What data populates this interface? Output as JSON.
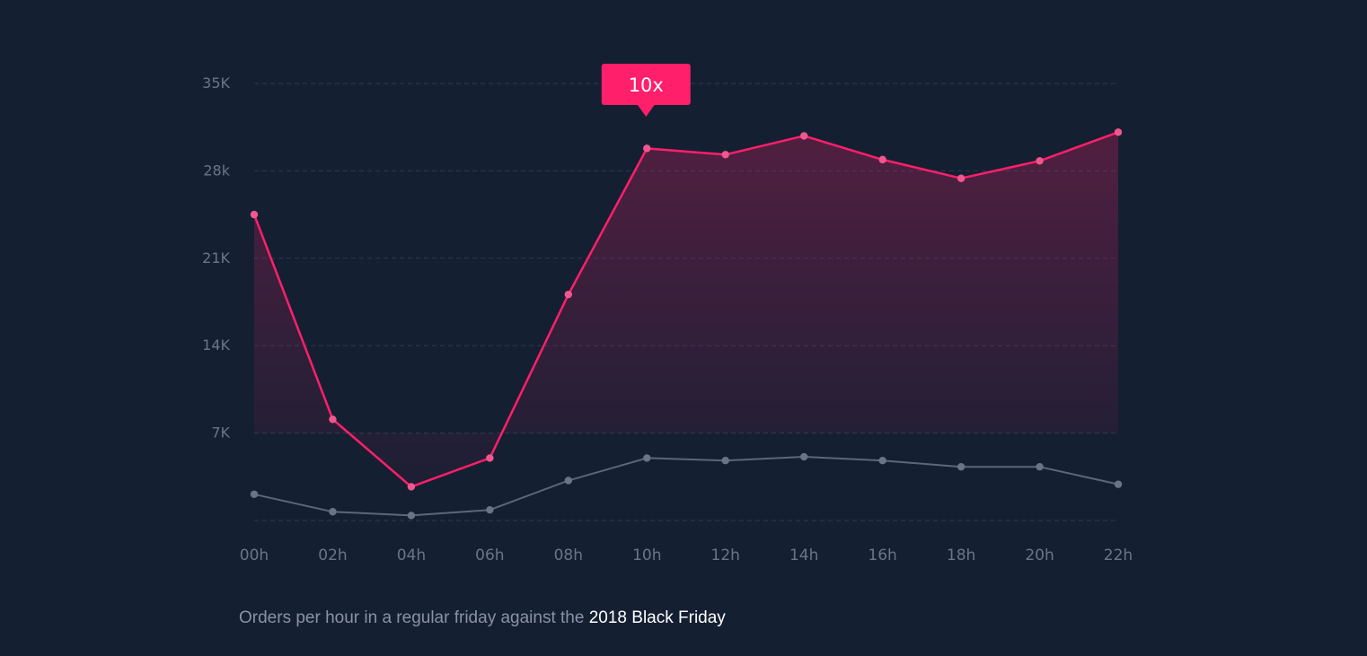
{
  "chart_data": {
    "type": "area",
    "categories": [
      "00h",
      "02h",
      "04h",
      "06h",
      "08h",
      "10h",
      "12h",
      "14h",
      "16h",
      "18h",
      "20h",
      "22h"
    ],
    "y_ticks": [
      "35K",
      "28k",
      "21K",
      "14K",
      "7K"
    ],
    "y_tick_values": [
      35000,
      28000,
      21000,
      14000,
      7000
    ],
    "ylim": [
      0,
      35000
    ],
    "grid": true,
    "series": [
      {
        "values": [
          24500,
          8100,
          2700,
          5000,
          18100,
          29800,
          29300,
          30800,
          28900,
          27400,
          28800,
          31100
        ],
        "color": "#ff1f6a",
        "fill": true
      },
      {
        "values": [
          2100,
          700,
          400,
          850,
          3200,
          5000,
          4800,
          5100,
          4800,
          4300,
          4300,
          2900
        ],
        "color": "#5c677b",
        "fill": false
      }
    ],
    "annotation": {
      "text": "10x",
      "at_category": "10h",
      "color": "#ff1f6a"
    }
  },
  "caption": {
    "text": "Orders per hour in a regular friday against the ",
    "highlight": "2018 Black Friday"
  }
}
